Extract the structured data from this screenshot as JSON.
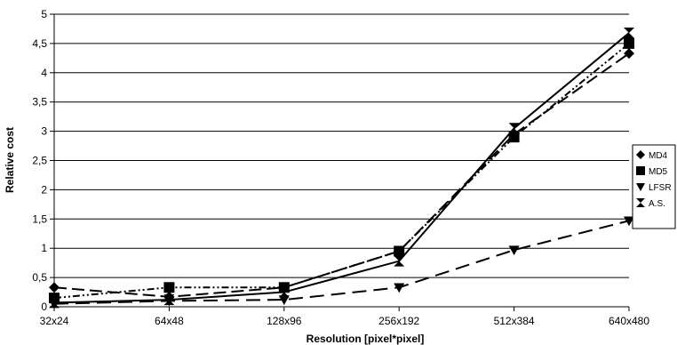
{
  "chart_data": {
    "type": "line",
    "categories": [
      "32x24",
      "64x48",
      "128x96",
      "256x192",
      "512x384",
      "640x480"
    ],
    "xlabel": "Resolution [pixel*pixel]",
    "ylabel": "Relative cost",
    "ylim": [
      0,
      5
    ],
    "yticks": [
      "0",
      "0,5",
      "1",
      "1,5",
      "2",
      "2,5",
      "3",
      "3,5",
      "4",
      "4,5",
      "5"
    ],
    "grid": true,
    "legend_position": "right",
    "series": [
      {
        "name": "MD4",
        "marker": "diamond",
        "line_style": "long-dash",
        "values": [
          0.33,
          0.17,
          0.33,
          0.95,
          2.95,
          4.33
        ]
      },
      {
        "name": "MD5",
        "marker": "square",
        "line_style": "dash-dot-dot",
        "values": [
          0.15,
          0.33,
          0.33,
          0.95,
          2.9,
          4.5
        ]
      },
      {
        "name": "LFSR",
        "marker": "triangle-down",
        "line_style": "dashed",
        "values": [
          0.05,
          0.1,
          0.12,
          0.33,
          0.97,
          1.47
        ]
      },
      {
        "name": "A.S.",
        "marker": "hourglass",
        "line_style": "solid",
        "values": [
          0.07,
          0.12,
          0.25,
          0.78,
          3.05,
          4.68
        ]
      }
    ]
  }
}
